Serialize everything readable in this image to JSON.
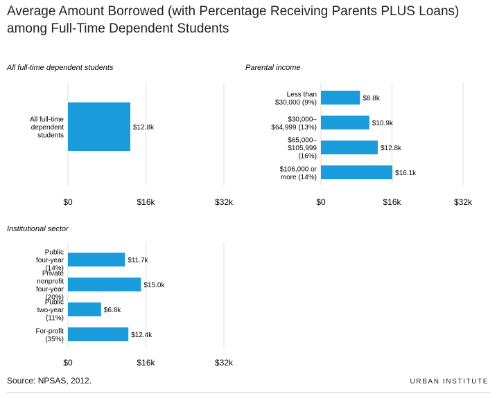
{
  "title": "Average Amount Borrowed (with Percentage Receiving Parents PLUS Loans) among Full-Time Dependent Students",
  "source": "Source: NPSAS, 2012.",
  "logo": "URBAN INSTITUTE",
  "bar_color": "#1a9bdc",
  "chart_data": [
    {
      "type": "bar",
      "orientation": "horizontal",
      "title": "All full-time dependent students",
      "categories": [
        "All full-time dependent students"
      ],
      "values": [
        12.8
      ],
      "value_labels": [
        "$12.8k"
      ],
      "xlim": [
        0,
        32
      ],
      "xticks": [
        "$0",
        "$16k",
        "$32k"
      ],
      "grid": true
    },
    {
      "type": "bar",
      "orientation": "horizontal",
      "title": "Parental income",
      "categories": [
        "Less than $30,000 (9%)",
        "$30,000–$64,999 (13%)",
        "$65,000–$105,999 (16%)",
        "$106,000 or more (14%)"
      ],
      "values": [
        8.8,
        10.9,
        12.8,
        16.1
      ],
      "value_labels": [
        "$8.8k",
        "$10.9k",
        "$12.8k",
        "$16.1k"
      ],
      "xlim": [
        0,
        32
      ],
      "xticks": [
        "$0",
        "$16k",
        "$32k"
      ],
      "grid": true
    },
    {
      "type": "bar",
      "orientation": "horizontal",
      "title": "Institutional sector",
      "categories": [
        "Public four-year (14%)",
        "Private nonprofit four-year (20%)",
        "Public two-year (11%)",
        "For-profit (35%)"
      ],
      "values": [
        11.7,
        15.0,
        6.8,
        12.4
      ],
      "value_labels": [
        "$11.7k",
        "$15.0k",
        "$6.8k",
        "$12.4k"
      ],
      "xlim": [
        0,
        32
      ],
      "xticks": [
        "$0",
        "$16k",
        "$32k"
      ],
      "grid": true
    }
  ]
}
